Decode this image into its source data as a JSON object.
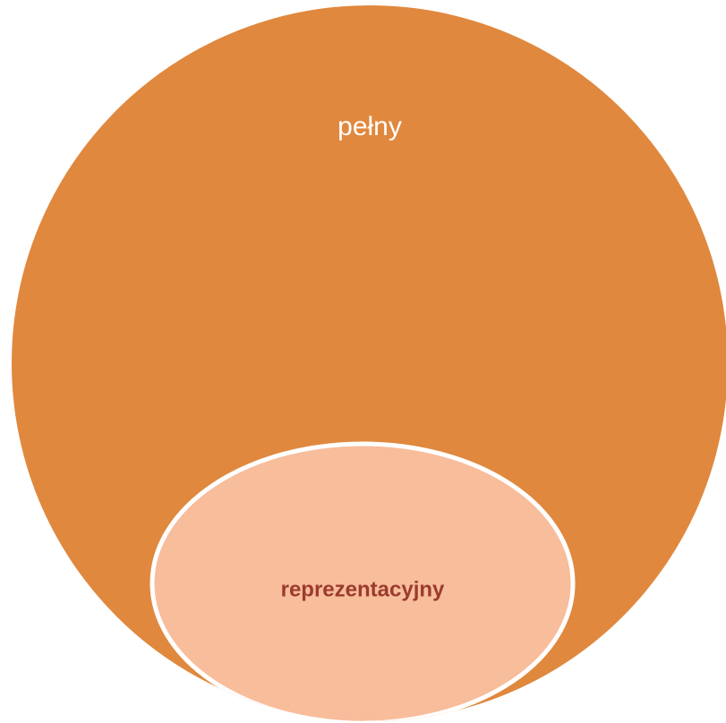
{
  "nodes": [
    {
      "label": "pełny"
    },
    {
      "label": "reprezentacyjny"
    }
  ]
}
